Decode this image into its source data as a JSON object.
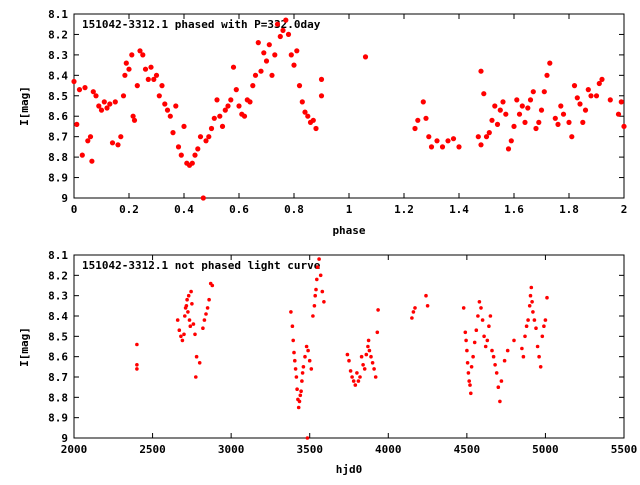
{
  "chart_data": [
    {
      "type": "scatter",
      "title": "151042-3312.1 phased with P=332.0day",
      "xlabel": "phase",
      "ylabel": "I[mag]",
      "xlim": [
        0,
        2
      ],
      "ylim": [
        9,
        8.1
      ],
      "y_inverted": true,
      "x_ticks": [
        0,
        0.2,
        0.4,
        0.6,
        0.8,
        1,
        1.2,
        1.4,
        1.6,
        1.8,
        2
      ],
      "x_tick_labels": [
        "0",
        "0.2",
        "0.4",
        "0.6",
        "0.8",
        "1",
        "1.2",
        "1.4",
        "1.6",
        "1.8",
        "2"
      ],
      "y_ticks": [
        8.1,
        8.2,
        8.3,
        8.4,
        8.5,
        8.6,
        8.7,
        8.8,
        8.9,
        9
      ],
      "y_tick_labels": [
        "8.1",
        "8.2",
        "8.3",
        "8.4",
        "8.5",
        "8.6",
        "8.7",
        "8.8",
        "8.9",
        "9"
      ],
      "grid": false,
      "marker_color": "#ff0000",
      "points": [
        [
          0.0,
          8.43
        ],
        [
          0.01,
          8.64
        ],
        [
          0.02,
          8.47
        ],
        [
          0.03,
          8.79
        ],
        [
          0.04,
          8.46
        ],
        [
          0.05,
          8.72
        ],
        [
          0.06,
          8.7
        ],
        [
          0.065,
          8.82
        ],
        [
          0.07,
          8.48
        ],
        [
          0.08,
          8.5
        ],
        [
          0.09,
          8.55
        ],
        [
          0.1,
          8.57
        ],
        [
          0.11,
          8.53
        ],
        [
          0.12,
          8.56
        ],
        [
          0.13,
          8.54
        ],
        [
          0.14,
          8.73
        ],
        [
          0.15,
          8.53
        ],
        [
          0.16,
          8.74
        ],
        [
          0.17,
          8.7
        ],
        [
          0.18,
          8.5
        ],
        [
          0.185,
          8.4
        ],
        [
          0.19,
          8.34
        ],
        [
          0.2,
          8.37
        ],
        [
          0.21,
          8.3
        ],
        [
          0.215,
          8.6
        ],
        [
          0.22,
          8.62
        ],
        [
          0.23,
          8.45
        ],
        [
          0.24,
          8.28
        ],
        [
          0.25,
          8.3
        ],
        [
          0.26,
          8.37
        ],
        [
          0.27,
          8.42
        ],
        [
          0.28,
          8.36
        ],
        [
          0.29,
          8.42
        ],
        [
          0.3,
          8.4
        ],
        [
          0.31,
          8.5
        ],
        [
          0.32,
          8.45
        ],
        [
          0.33,
          8.54
        ],
        [
          0.34,
          8.57
        ],
        [
          0.35,
          8.6
        ],
        [
          0.36,
          8.68
        ],
        [
          0.37,
          8.55
        ],
        [
          0.38,
          8.75
        ],
        [
          0.39,
          8.79
        ],
        [
          0.4,
          8.65
        ],
        [
          0.41,
          8.83
        ],
        [
          0.42,
          8.84
        ],
        [
          0.43,
          8.83
        ],
        [
          0.44,
          8.79
        ],
        [
          0.45,
          8.76
        ],
        [
          0.46,
          8.7
        ],
        [
          0.47,
          9.0
        ],
        [
          0.48,
          8.72
        ],
        [
          0.49,
          8.7
        ],
        [
          0.5,
          8.66
        ],
        [
          0.51,
          8.61
        ],
        [
          0.52,
          8.52
        ],
        [
          0.53,
          8.6
        ],
        [
          0.54,
          8.65
        ],
        [
          0.55,
          8.57
        ],
        [
          0.56,
          8.55
        ],
        [
          0.57,
          8.52
        ],
        [
          0.58,
          8.36
        ],
        [
          0.59,
          8.47
        ],
        [
          0.6,
          8.55
        ],
        [
          0.61,
          8.59
        ],
        [
          0.62,
          8.6
        ],
        [
          0.63,
          8.52
        ],
        [
          0.64,
          8.53
        ],
        [
          0.65,
          8.45
        ],
        [
          0.66,
          8.4
        ],
        [
          0.67,
          8.24
        ],
        [
          0.68,
          8.38
        ],
        [
          0.69,
          8.29
        ],
        [
          0.7,
          8.33
        ],
        [
          0.71,
          8.25
        ],
        [
          0.72,
          8.4
        ],
        [
          0.73,
          8.3
        ],
        [
          0.74,
          8.15
        ],
        [
          0.75,
          8.21
        ],
        [
          0.76,
          8.18
        ],
        [
          0.77,
          8.13
        ],
        [
          0.78,
          8.2
        ],
        [
          0.79,
          8.3
        ],
        [
          0.8,
          8.35
        ],
        [
          0.81,
          8.28
        ],
        [
          0.82,
          8.45
        ],
        [
          0.83,
          8.53
        ],
        [
          0.84,
          8.58
        ],
        [
          0.85,
          8.6
        ],
        [
          0.86,
          8.63
        ],
        [
          0.87,
          8.62
        ],
        [
          0.88,
          8.66
        ],
        [
          0.9,
          8.5
        ],
        [
          0.9,
          8.42
        ],
        [
          1.06,
          8.31
        ],
        [
          1.24,
          8.66
        ],
        [
          1.25,
          8.62
        ],
        [
          1.27,
          8.53
        ],
        [
          1.28,
          8.61
        ],
        [
          1.29,
          8.7
        ],
        [
          1.3,
          8.75
        ],
        [
          1.32,
          8.72
        ],
        [
          1.34,
          8.75
        ],
        [
          1.36,
          8.72
        ],
        [
          1.38,
          8.71
        ],
        [
          1.4,
          8.75
        ],
        [
          1.47,
          8.7
        ],
        [
          1.48,
          8.74
        ],
        [
          1.48,
          8.38
        ],
        [
          1.49,
          8.49
        ],
        [
          1.5,
          8.7
        ],
        [
          1.51,
          8.68
        ],
        [
          1.52,
          8.62
        ],
        [
          1.53,
          8.55
        ],
        [
          1.54,
          8.64
        ],
        [
          1.55,
          8.57
        ],
        [
          1.56,
          8.53
        ],
        [
          1.57,
          8.59
        ],
        [
          1.58,
          8.76
        ],
        [
          1.59,
          8.72
        ],
        [
          1.6,
          8.65
        ],
        [
          1.61,
          8.52
        ],
        [
          1.62,
          8.59
        ],
        [
          1.63,
          8.55
        ],
        [
          1.64,
          8.63
        ],
        [
          1.65,
          8.56
        ],
        [
          1.66,
          8.52
        ],
        [
          1.67,
          8.48
        ],
        [
          1.68,
          8.66
        ],
        [
          1.69,
          8.63
        ],
        [
          1.7,
          8.57
        ],
        [
          1.71,
          8.48
        ],
        [
          1.72,
          8.4
        ],
        [
          1.73,
          8.34
        ],
        [
          1.75,
          8.61
        ],
        [
          1.76,
          8.64
        ],
        [
          1.77,
          8.55
        ],
        [
          1.78,
          8.59
        ],
        [
          1.8,
          8.63
        ],
        [
          1.81,
          8.7
        ],
        [
          1.82,
          8.45
        ],
        [
          1.83,
          8.51
        ],
        [
          1.84,
          8.54
        ],
        [
          1.85,
          8.63
        ],
        [
          1.86,
          8.57
        ],
        [
          1.87,
          8.47
        ],
        [
          1.88,
          8.5
        ],
        [
          1.9,
          8.5
        ],
        [
          1.91,
          8.44
        ],
        [
          1.92,
          8.42
        ],
        [
          1.95,
          8.52
        ],
        [
          1.98,
          8.59
        ],
        [
          1.99,
          8.53
        ],
        [
          2.0,
          8.65
        ]
      ]
    },
    {
      "type": "scatter",
      "title": "151042-3312.1 not phased light curve",
      "xlabel": "hjd0",
      "ylabel": "I[mag]",
      "xlim": [
        2000,
        5500
      ],
      "ylim": [
        9,
        8.1
      ],
      "y_inverted": true,
      "x_ticks": [
        2000,
        2500,
        3000,
        3500,
        4000,
        4500,
        5000,
        5500
      ],
      "x_tick_labels": [
        "2000",
        "2500",
        "3000",
        "3500",
        "4000",
        "4500",
        "5000",
        "5500"
      ],
      "y_ticks": [
        8.1,
        8.2,
        8.3,
        8.4,
        8.5,
        8.6,
        8.7,
        8.8,
        8.9,
        9
      ],
      "y_tick_labels": [
        "8.1",
        "8.2",
        "8.3",
        "8.4",
        "8.5",
        "8.6",
        "8.7",
        "8.8",
        "8.9",
        "9"
      ],
      "grid": false,
      "marker_color": "#ff0000",
      "points": [
        [
          2400,
          8.54
        ],
        [
          2400,
          8.64
        ],
        [
          2400,
          8.66
        ],
        [
          2660,
          8.42
        ],
        [
          2670,
          8.47
        ],
        [
          2680,
          8.5
        ],
        [
          2690,
          8.52
        ],
        [
          2700,
          8.49
        ],
        [
          2705,
          8.4
        ],
        [
          2710,
          8.36
        ],
        [
          2715,
          8.35
        ],
        [
          2720,
          8.32
        ],
        [
          2725,
          8.38
        ],
        [
          2730,
          8.3
        ],
        [
          2735,
          8.42
        ],
        [
          2740,
          8.45
        ],
        [
          2745,
          8.28
        ],
        [
          2750,
          8.34
        ],
        [
          2760,
          8.44
        ],
        [
          2770,
          8.49
        ],
        [
          2775,
          8.7
        ],
        [
          2780,
          8.6
        ],
        [
          2800,
          8.63
        ],
        [
          2820,
          8.46
        ],
        [
          2830,
          8.42
        ],
        [
          2840,
          8.39
        ],
        [
          2850,
          8.36
        ],
        [
          2860,
          8.32
        ],
        [
          2870,
          8.24
        ],
        [
          2880,
          8.25
        ],
        [
          3380,
          8.38
        ],
        [
          3390,
          8.45
        ],
        [
          3395,
          8.52
        ],
        [
          3400,
          8.58
        ],
        [
          3405,
          8.62
        ],
        [
          3410,
          8.66
        ],
        [
          3415,
          8.7
        ],
        [
          3420,
          8.76
        ],
        [
          3425,
          8.81
        ],
        [
          3430,
          8.85
        ],
        [
          3435,
          8.82
        ],
        [
          3440,
          8.79
        ],
        [
          3445,
          8.77
        ],
        [
          3450,
          8.72
        ],
        [
          3455,
          8.68
        ],
        [
          3460,
          8.65
        ],
        [
          3470,
          8.6
        ],
        [
          3480,
          8.55
        ],
        [
          3485,
          9.0
        ],
        [
          3490,
          8.57
        ],
        [
          3500,
          8.62
        ],
        [
          3510,
          8.66
        ],
        [
          3520,
          8.4
        ],
        [
          3530,
          8.35
        ],
        [
          3535,
          8.3
        ],
        [
          3540,
          8.27
        ],
        [
          3545,
          8.22
        ],
        [
          3550,
          8.16
        ],
        [
          3560,
          8.12
        ],
        [
          3570,
          8.2
        ],
        [
          3580,
          8.28
        ],
        [
          3590,
          8.33
        ],
        [
          3740,
          8.59
        ],
        [
          3750,
          8.62
        ],
        [
          3760,
          8.67
        ],
        [
          3770,
          8.7
        ],
        [
          3780,
          8.72
        ],
        [
          3790,
          8.74
        ],
        [
          3800,
          8.68
        ],
        [
          3810,
          8.72
        ],
        [
          3820,
          8.7
        ],
        [
          3830,
          8.6
        ],
        [
          3840,
          8.64
        ],
        [
          3850,
          8.66
        ],
        [
          3860,
          8.59
        ],
        [
          3870,
          8.55
        ],
        [
          3875,
          8.52
        ],
        [
          3880,
          8.57
        ],
        [
          3890,
          8.6
        ],
        [
          3900,
          8.63
        ],
        [
          3910,
          8.66
        ],
        [
          3920,
          8.7
        ],
        [
          3930,
          8.48
        ],
        [
          3935,
          8.37
        ],
        [
          4150,
          8.41
        ],
        [
          4160,
          8.38
        ],
        [
          4170,
          8.36
        ],
        [
          4240,
          8.3
        ],
        [
          4250,
          8.35
        ],
        [
          4480,
          8.36
        ],
        [
          4490,
          8.48
        ],
        [
          4495,
          8.52
        ],
        [
          4500,
          8.57
        ],
        [
          4505,
          8.63
        ],
        [
          4510,
          8.68
        ],
        [
          4515,
          8.72
        ],
        [
          4520,
          8.74
        ],
        [
          4525,
          8.78
        ],
        [
          4530,
          8.65
        ],
        [
          4540,
          8.6
        ],
        [
          4550,
          8.53
        ],
        [
          4560,
          8.47
        ],
        [
          4570,
          8.4
        ],
        [
          4580,
          8.33
        ],
        [
          4590,
          8.36
        ],
        [
          4600,
          8.42
        ],
        [
          4610,
          8.5
        ],
        [
          4620,
          8.55
        ],
        [
          4630,
          8.52
        ],
        [
          4640,
          8.45
        ],
        [
          4650,
          8.4
        ],
        [
          4660,
          8.57
        ],
        [
          4670,
          8.6
        ],
        [
          4680,
          8.64
        ],
        [
          4690,
          8.68
        ],
        [
          4700,
          8.75
        ],
        [
          4710,
          8.82
        ],
        [
          4720,
          8.72
        ],
        [
          4740,
          8.62
        ],
        [
          4760,
          8.57
        ],
        [
          4800,
          8.52
        ],
        [
          4850,
          8.56
        ],
        [
          4860,
          8.6
        ],
        [
          4870,
          8.5
        ],
        [
          4880,
          8.45
        ],
        [
          4890,
          8.42
        ],
        [
          4900,
          8.35
        ],
        [
          4905,
          8.3
        ],
        [
          4910,
          8.26
        ],
        [
          4915,
          8.33
        ],
        [
          4920,
          8.38
        ],
        [
          4930,
          8.42
        ],
        [
          4940,
          8.46
        ],
        [
          4950,
          8.55
        ],
        [
          4960,
          8.6
        ],
        [
          4970,
          8.65
        ],
        [
          4980,
          8.5
        ],
        [
          4990,
          8.45
        ],
        [
          5000,
          8.42
        ],
        [
          5010,
          8.31
        ]
      ]
    }
  ]
}
